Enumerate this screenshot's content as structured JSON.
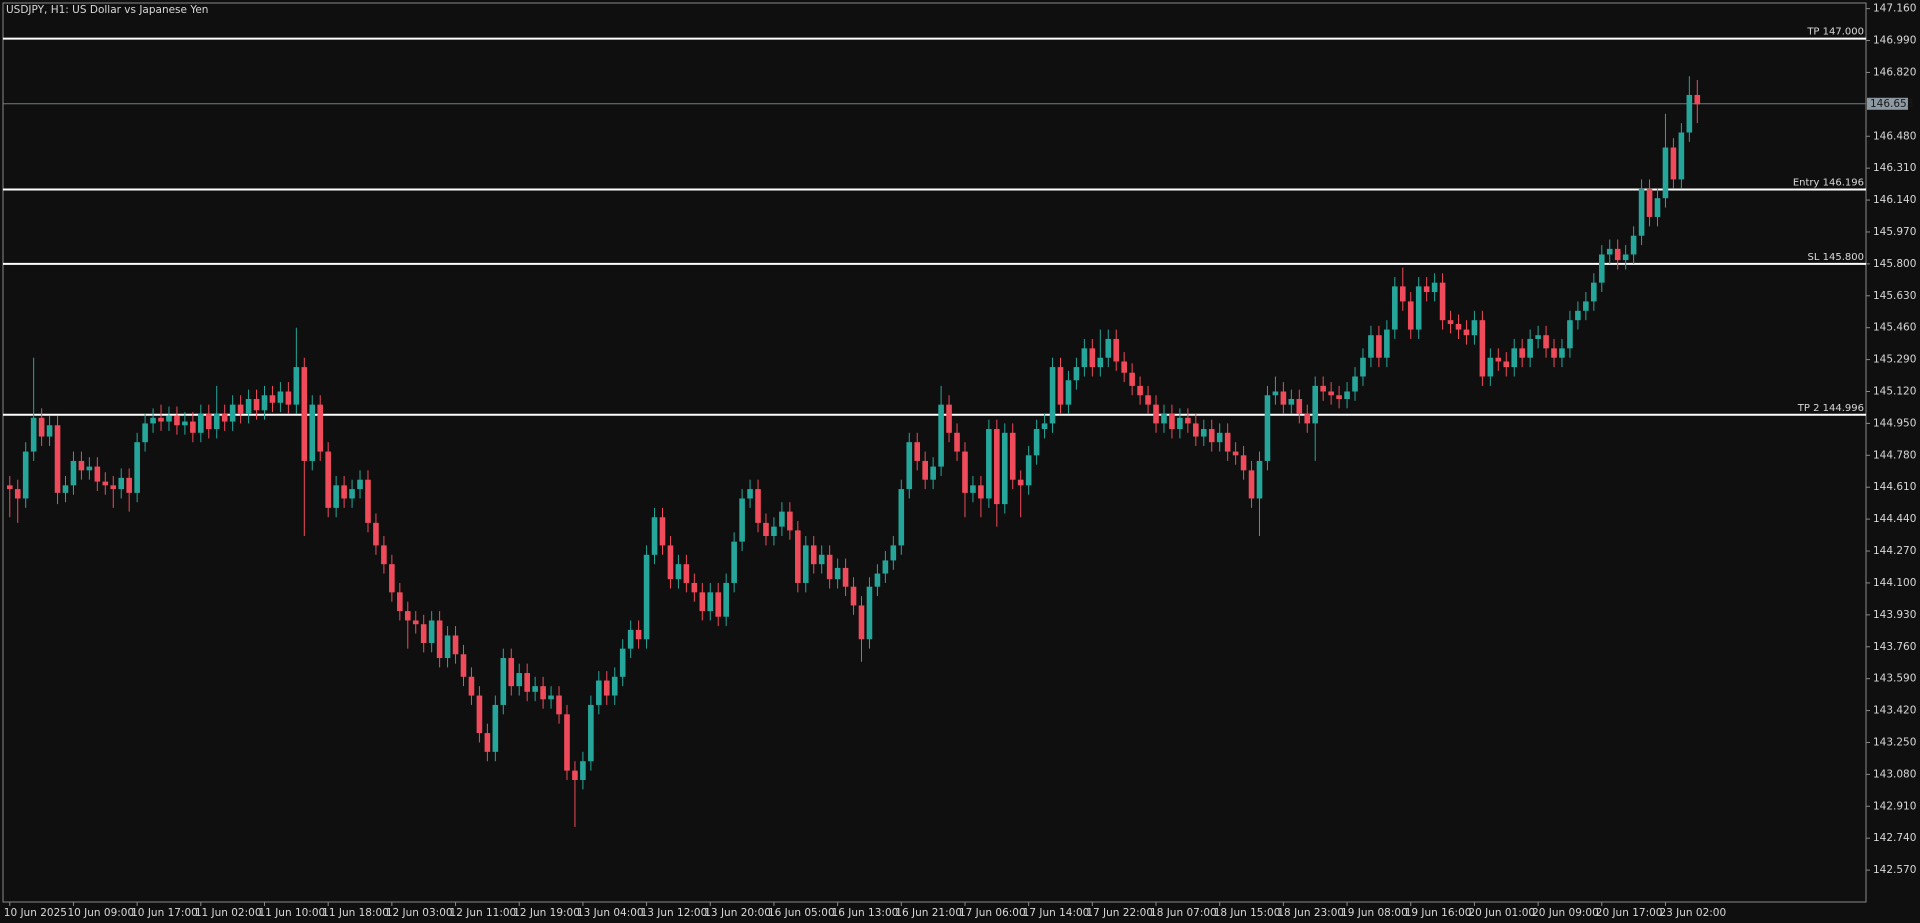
{
  "chart_data": {
    "type": "candlestick",
    "title": "USDJPY, H1:  US Dollar vs Japanese Yen",
    "up_color": "#26a69a",
    "down_color": "#ef4b5a",
    "level_color": "#ffffff",
    "ylim": [
      142.4,
      147.19
    ],
    "yticks": [
      {
        "value": 147.16,
        "label": "147.160"
      },
      {
        "value": 146.99,
        "label": "146.990"
      },
      {
        "value": 146.82,
        "label": "146.820"
      },
      {
        "value": 146.48,
        "label": "146.480"
      },
      {
        "value": 146.31,
        "label": "146.310"
      },
      {
        "value": 146.14,
        "label": "146.140"
      },
      {
        "value": 145.97,
        "label": "145.970"
      },
      {
        "value": 145.8,
        "label": "145.800"
      },
      {
        "value": 145.63,
        "label": "145.630"
      },
      {
        "value": 145.46,
        "label": "145.460"
      },
      {
        "value": 145.29,
        "label": "145.290"
      },
      {
        "value": 145.12,
        "label": "145.120"
      },
      {
        "value": 144.95,
        "label": "144.950"
      },
      {
        "value": 144.78,
        "label": "144.780"
      },
      {
        "value": 144.61,
        "label": "144.610"
      },
      {
        "value": 144.44,
        "label": "144.440"
      },
      {
        "value": 144.27,
        "label": "144.270"
      },
      {
        "value": 144.1,
        "label": "144.100"
      },
      {
        "value": 143.93,
        "label": "143.930"
      },
      {
        "value": 143.76,
        "label": "143.760"
      },
      {
        "value": 143.59,
        "label": "143.590"
      },
      {
        "value": 143.42,
        "label": "143.420"
      },
      {
        "value": 143.25,
        "label": "143.250"
      },
      {
        "value": 143.08,
        "label": "143.080"
      },
      {
        "value": 142.91,
        "label": "142.910"
      },
      {
        "value": 142.74,
        "label": "142.740"
      },
      {
        "value": 142.57,
        "label": "142.570"
      }
    ],
    "last_price": 146.653,
    "levels": [
      {
        "label": "TP 147.000",
        "value": 147.0
      },
      {
        "label": "Entry 146.196",
        "value": 146.196
      },
      {
        "label": "SL 145.800",
        "value": 145.8
      },
      {
        "label": "TP 2 144.996",
        "value": 144.996
      }
    ],
    "categories": [
      "10 Jun 2025",
      null,
      null,
      null,
      null,
      null,
      null,
      null,
      "10 Jun 09:00",
      null,
      null,
      null,
      null,
      null,
      null,
      null,
      "10 Jun 17:00",
      null,
      null,
      null,
      null,
      null,
      null,
      null,
      "11 Jun 02:00",
      null,
      null,
      null,
      null,
      null,
      null,
      null,
      "11 Jun 10:00",
      null,
      null,
      null,
      null,
      null,
      null,
      null,
      "11 Jun 18:00",
      null,
      null,
      null,
      null,
      null,
      null,
      null,
      "12 Jun 03:00",
      null,
      null,
      null,
      null,
      null,
      null,
      null,
      "12 Jun 11:00",
      null,
      null,
      null,
      null,
      null,
      null,
      null,
      "12 Jun 19:00",
      null,
      null,
      null,
      null,
      null,
      null,
      null,
      "13 Jun 04:00",
      null,
      null,
      null,
      null,
      null,
      null,
      null,
      "13 Jun 12:00",
      null,
      null,
      null,
      null,
      null,
      null,
      null,
      "13 Jun 20:00",
      null,
      null,
      null,
      null,
      null,
      null,
      null,
      "16 Jun 05:00",
      null,
      null,
      null,
      null,
      null,
      null,
      null,
      "16 Jun 13:00",
      null,
      null,
      null,
      null,
      null,
      null,
      null,
      "16 Jun 21:00",
      null,
      null,
      null,
      null,
      null,
      null,
      null,
      "17 Jun 06:00",
      null,
      null,
      null,
      null,
      null,
      null,
      null,
      "17 Jun 14:00",
      null,
      null,
      null,
      null,
      null,
      null,
      null,
      "17 Jun 22:00",
      null,
      null,
      null,
      null,
      null,
      null,
      null,
      "18 Jun 07:00",
      null,
      null,
      null,
      null,
      null,
      null,
      null,
      "18 Jun 15:00",
      null,
      null,
      null,
      null,
      null,
      null,
      null,
      "18 Jun 23:00",
      null,
      null,
      null,
      null,
      null,
      null,
      null,
      "19 Jun 08:00",
      null,
      null,
      null,
      null,
      null,
      null,
      null,
      "19 Jun 16:00",
      null,
      null,
      null,
      null,
      null,
      null,
      null,
      "20 Jun 01:00",
      null,
      null,
      null,
      null,
      null,
      null,
      null,
      "20 Jun 09:00",
      null,
      null,
      null,
      null,
      null,
      null,
      null,
      "20 Jun 17:00",
      null,
      null,
      null,
      null,
      null,
      null,
      null,
      "23 Jun 02:00",
      null,
      null,
      null,
      null
    ],
    "open": [
      144.62,
      144.6,
      144.55,
      144.8,
      144.98,
      144.88,
      144.94,
      144.58,
      144.62,
      144.75,
      144.7,
      144.72,
      144.64,
      144.62,
      144.6,
      144.66,
      144.58,
      144.85,
      144.95,
      144.98,
      144.96,
      144.99,
      144.94,
      144.96,
      144.9,
      145.0,
      144.92,
      145.0,
      144.96,
      145.05,
      145.0,
      145.08,
      145.02,
      145.1,
      145.06,
      145.12,
      145.05,
      145.25,
      144.75,
      145.05,
      144.8,
      144.5,
      144.62,
      144.55,
      144.6,
      144.65,
      144.42,
      144.3,
      144.2,
      144.05,
      143.95,
      143.9,
      143.88,
      143.78,
      143.9,
      143.7,
      143.82,
      143.72,
      143.6,
      143.5,
      143.3,
      143.2,
      143.45,
      143.7,
      143.55,
      143.62,
      143.52,
      143.55,
      143.48,
      143.5,
      143.4,
      143.1,
      143.05,
      143.15,
      143.45,
      143.58,
      143.5,
      143.6,
      143.75,
      143.85,
      143.8,
      144.25,
      144.45,
      144.3,
      144.12,
      144.2,
      144.1,
      144.05,
      143.95,
      144.05,
      143.92,
      144.1,
      144.32,
      144.55,
      144.6,
      144.42,
      144.35,
      144.4,
      144.48,
      144.38,
      144.1,
      144.3,
      144.2,
      144.25,
      144.12,
      144.18,
      144.08,
      143.98,
      143.8,
      144.08,
      144.15,
      144.22,
      144.3,
      144.6,
      144.85,
      144.75,
      144.65,
      144.72,
      145.05,
      144.9,
      144.8,
      144.58,
      144.62,
      144.55,
      144.92,
      144.52,
      144.9,
      144.65,
      144.62,
      144.78,
      144.92,
      144.95,
      145.25,
      145.05,
      145.18,
      145.25,
      145.35,
      145.25,
      145.3,
      145.4,
      145.28,
      145.22,
      145.15,
      145.1,
      145.05,
      144.95,
      145.0,
      144.92,
      144.98,
      144.95,
      144.88,
      144.92,
      144.85,
      144.9,
      144.8,
      144.78,
      144.7,
      144.55,
      144.75,
      145.1,
      145.12,
      145.05,
      145.08,
      145.0,
      144.95,
      145.15,
      145.12,
      145.1,
      145.08,
      145.12,
      145.2,
      145.3,
      145.42,
      145.3,
      145.45,
      145.68,
      145.6,
      145.45,
      145.68,
      145.65,
      145.7,
      145.5,
      145.48,
      145.45,
      145.42,
      145.5,
      145.2,
      145.3,
      145.28,
      145.25,
      145.35,
      145.3,
      145.4,
      145.42,
      145.35,
      145.3,
      145.35,
      145.5,
      145.55,
      145.6,
      145.7,
      145.85,
      145.88,
      145.82,
      145.85,
      145.95,
      146.2,
      146.05,
      146.15,
      146.42,
      146.25,
      146.5,
      146.7
    ],
    "high": [
      144.67,
      144.65,
      144.85,
      145.3,
      145.03,
      144.99,
      144.99,
      144.67,
      144.8,
      144.8,
      144.77,
      144.77,
      144.69,
      144.67,
      144.71,
      144.71,
      144.9,
      145.0,
      145.03,
      145.05,
      145.04,
      145.04,
      145.01,
      145.01,
      145.05,
      145.05,
      145.15,
      145.05,
      145.1,
      145.1,
      145.13,
      145.13,
      145.15,
      145.15,
      145.17,
      145.17,
      145.46,
      145.3,
      145.1,
      145.1,
      144.85,
      144.67,
      144.67,
      144.65,
      144.7,
      144.7,
      144.47,
      144.35,
      144.25,
      144.1,
      144.0,
      143.95,
      143.93,
      143.95,
      143.95,
      143.87,
      143.87,
      143.77,
      143.65,
      143.55,
      143.35,
      143.5,
      143.75,
      143.75,
      143.67,
      143.67,
      143.6,
      143.6,
      143.55,
      143.55,
      143.45,
      143.15,
      143.2,
      143.5,
      143.63,
      143.63,
      143.65,
      143.8,
      143.9,
      143.9,
      144.3,
      144.5,
      144.5,
      144.35,
      144.25,
      144.25,
      144.15,
      144.1,
      144.1,
      144.1,
      144.15,
      144.37,
      144.6,
      144.65,
      144.65,
      144.47,
      144.45,
      144.53,
      144.53,
      144.43,
      144.35,
      144.35,
      144.3,
      144.3,
      144.23,
      144.23,
      144.13,
      144.03,
      144.13,
      144.2,
      144.27,
      144.35,
      144.65,
      144.9,
      144.9,
      144.8,
      144.77,
      145.15,
      145.1,
      144.95,
      144.85,
      144.67,
      144.67,
      144.97,
      144.97,
      144.95,
      144.95,
      144.7,
      144.83,
      144.97,
      145.0,
      145.3,
      145.3,
      145.23,
      145.3,
      145.4,
      145.4,
      145.45,
      145.45,
      145.45,
      145.33,
      145.27,
      145.2,
      145.15,
      145.1,
      145.05,
      145.05,
      145.03,
      145.03,
      145.0,
      144.97,
      144.97,
      144.95,
      144.95,
      144.85,
      144.83,
      144.75,
      144.8,
      145.15,
      145.2,
      145.17,
      145.13,
      145.13,
      145.05,
      145.2,
      145.2,
      145.17,
      145.15,
      145.17,
      145.25,
      145.35,
      145.47,
      145.47,
      145.5,
      145.73,
      145.78,
      145.65,
      145.73,
      145.73,
      145.75,
      145.75,
      145.55,
      145.53,
      145.5,
      145.55,
      145.55,
      145.35,
      145.35,
      145.33,
      145.4,
      145.4,
      145.45,
      145.47,
      145.47,
      145.4,
      145.4,
      145.55,
      145.6,
      145.65,
      145.75,
      145.9,
      145.93,
      145.93,
      145.9,
      146.0,
      146.25,
      146.25,
      146.2,
      146.6,
      146.47,
      146.55,
      146.8,
      146.78
    ],
    "low": [
      144.45,
      144.42,
      144.5,
      144.75,
      144.83,
      144.83,
      144.52,
      144.53,
      144.57,
      144.65,
      144.65,
      144.59,
      144.57,
      144.5,
      144.55,
      144.48,
      144.53,
      144.8,
      144.9,
      144.91,
      144.91,
      144.89,
      144.89,
      144.85,
      144.85,
      144.87,
      144.87,
      144.91,
      144.91,
      144.95,
      144.95,
      144.97,
      144.97,
      145.01,
      145.01,
      145.0,
      145.0,
      144.35,
      144.7,
      144.75,
      144.45,
      144.45,
      144.5,
      144.5,
      144.55,
      144.37,
      144.25,
      144.15,
      144.0,
      143.9,
      143.75,
      143.83,
      143.73,
      143.73,
      143.65,
      143.65,
      143.67,
      143.55,
      143.45,
      143.25,
      143.15,
      143.15,
      143.4,
      143.5,
      143.5,
      143.47,
      143.47,
      143.43,
      143.43,
      143.35,
      143.05,
      142.8,
      143.0,
      143.1,
      143.4,
      143.45,
      143.45,
      143.55,
      143.7,
      143.75,
      143.75,
      144.2,
      144.25,
      144.07,
      144.07,
      144.05,
      144.0,
      143.9,
      143.9,
      143.87,
      143.87,
      144.05,
      144.27,
      144.5,
      144.37,
      144.3,
      144.3,
      144.35,
      144.33,
      144.05,
      144.05,
      144.15,
      144.15,
      144.07,
      144.07,
      144.03,
      143.93,
      143.68,
      143.75,
      144.03,
      144.1,
      144.17,
      144.25,
      144.55,
      144.7,
      144.6,
      144.6,
      144.67,
      144.85,
      144.75,
      144.45,
      144.53,
      144.45,
      144.5,
      144.4,
      144.47,
      144.6,
      144.45,
      144.57,
      144.73,
      144.87,
      144.9,
      145.0,
      145.0,
      145.13,
      145.2,
      145.2,
      145.2,
      145.25,
      145.23,
      145.17,
      145.1,
      145.05,
      145.0,
      144.9,
      144.9,
      144.87,
      144.87,
      144.9,
      144.83,
      144.83,
      144.8,
      144.8,
      144.75,
      144.73,
      144.65,
      144.5,
      144.35,
      144.7,
      145.05,
      145.0,
      145.0,
      144.95,
      144.9,
      144.75,
      145.07,
      145.05,
      145.03,
      145.03,
      145.07,
      145.15,
      145.25,
      145.25,
      145.25,
      145.4,
      145.55,
      145.4,
      145.4,
      145.6,
      145.6,
      145.45,
      145.43,
      145.4,
      145.37,
      145.37,
      145.15,
      145.15,
      145.23,
      145.2,
      145.2,
      145.25,
      145.25,
      145.35,
      145.3,
      145.25,
      145.25,
      145.3,
      145.45,
      145.5,
      145.55,
      145.65,
      145.8,
      145.77,
      145.77,
      145.8,
      145.9,
      146.0,
      146.0,
      146.1,
      146.2,
      146.2,
      146.45,
      146.55
    ],
    "close": [
      144.6,
      144.55,
      144.8,
      144.98,
      144.88,
      144.94,
      144.58,
      144.62,
      144.75,
      144.7,
      144.72,
      144.64,
      144.62,
      144.6,
      144.66,
      144.58,
      144.85,
      144.95,
      144.98,
      144.96,
      144.99,
      144.94,
      144.96,
      144.9,
      145.0,
      144.92,
      145.0,
      144.96,
      145.05,
      145.0,
      145.08,
      145.02,
      145.1,
      145.06,
      145.12,
      145.05,
      145.25,
      144.75,
      145.05,
      144.8,
      144.5,
      144.62,
      144.55,
      144.6,
      144.65,
      144.42,
      144.3,
      144.2,
      144.05,
      143.95,
      143.9,
      143.88,
      143.78,
      143.9,
      143.7,
      143.82,
      143.72,
      143.6,
      143.5,
      143.3,
      143.2,
      143.45,
      143.7,
      143.55,
      143.62,
      143.52,
      143.55,
      143.48,
      143.5,
      143.4,
      143.1,
      143.05,
      143.15,
      143.45,
      143.58,
      143.5,
      143.6,
      143.75,
      143.85,
      143.8,
      144.25,
      144.45,
      144.3,
      144.12,
      144.2,
      144.1,
      144.05,
      143.95,
      144.05,
      143.92,
      144.1,
      144.32,
      144.55,
      144.6,
      144.42,
      144.35,
      144.4,
      144.48,
      144.38,
      144.1,
      144.3,
      144.2,
      144.25,
      144.12,
      144.18,
      144.08,
      143.98,
      143.8,
      144.08,
      144.15,
      144.22,
      144.3,
      144.6,
      144.85,
      144.75,
      144.65,
      144.72,
      145.05,
      144.9,
      144.8,
      144.58,
      144.62,
      144.55,
      144.92,
      144.52,
      144.9,
      144.65,
      144.62,
      144.78,
      144.92,
      144.95,
      145.25,
      145.05,
      145.18,
      145.25,
      145.35,
      145.25,
      145.3,
      145.4,
      145.28,
      145.22,
      145.15,
      145.1,
      145.05,
      144.95,
      145.0,
      144.92,
      144.98,
      144.95,
      144.88,
      144.92,
      144.85,
      144.9,
      144.8,
      144.78,
      144.7,
      144.55,
      144.75,
      145.1,
      145.12,
      145.05,
      145.08,
      145.0,
      144.95,
      145.15,
      145.12,
      145.1,
      145.08,
      145.12,
      145.2,
      145.3,
      145.42,
      145.3,
      145.45,
      145.68,
      145.6,
      145.45,
      145.68,
      145.65,
      145.7,
      145.5,
      145.48,
      145.45,
      145.42,
      145.5,
      145.2,
      145.3,
      145.28,
      145.25,
      145.35,
      145.3,
      145.4,
      145.42,
      145.35,
      145.3,
      145.35,
      145.5,
      145.55,
      145.6,
      145.7,
      145.85,
      145.88,
      145.82,
      145.85,
      145.95,
      146.2,
      146.05,
      146.15,
      146.42,
      146.25,
      146.5,
      146.7,
      146.65
    ]
  }
}
